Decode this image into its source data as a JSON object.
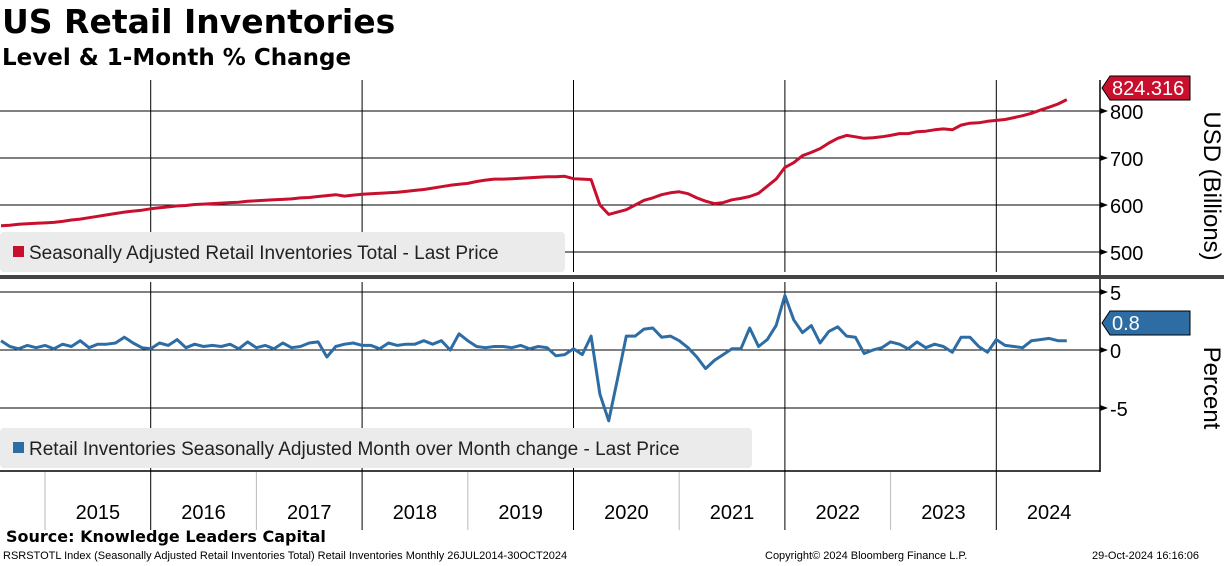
{
  "title": "US Retail Inventories",
  "subtitle": "Level & 1-Month % Change",
  "source": "Source: Knowledge Leaders Capital",
  "footer": {
    "description": "RSRSTOTL Index (Seasonally Adjusted Retail Inventories Total) Retail Inventories  Monthly 26JUL2014-30OCT2024",
    "copyright": "Copyright© 2024 Bloomberg Finance L.P.",
    "timestamp": "29-Oct-2024 16:16:06"
  },
  "chart_data": [
    {
      "type": "line",
      "start": "2014-08",
      "frequency": "monthly",
      "ylabel": "USD (Billions)",
      "yticks": [
        500,
        600,
        700,
        800
      ],
      "ylim": [
        450,
        850
      ],
      "legend": "Seasonally Adjusted Retail Inventories Total - Last Price",
      "last_value_label": "824.316",
      "color": "#c8102e",
      "values": [
        556,
        557,
        559,
        560,
        561,
        562,
        563,
        565,
        568,
        570,
        573,
        576,
        579,
        582,
        585,
        587,
        589,
        592,
        594,
        596,
        598,
        599,
        601,
        602,
        603,
        604,
        605,
        606,
        608,
        609,
        610,
        611,
        612,
        613,
        615,
        616,
        618,
        620,
        622,
        619,
        621,
        623,
        624,
        625,
        626,
        627,
        629,
        631,
        633,
        636,
        639,
        642,
        644,
        646,
        650,
        653,
        655,
        655,
        656,
        657,
        658,
        659,
        660,
        660,
        661,
        656,
        655,
        654,
        600,
        580,
        585,
        590,
        600,
        610,
        615,
        622,
        626,
        628,
        624,
        615,
        608,
        603,
        605,
        611,
        614,
        618,
        625,
        640,
        655,
        680,
        690,
        705,
        712,
        720,
        732,
        742,
        748,
        745,
        742,
        743,
        745,
        748,
        752,
        752,
        756,
        757,
        760,
        762,
        760,
        770,
        774,
        775,
        778,
        780,
        782,
        786,
        790,
        795,
        802,
        808,
        815,
        824.316
      ]
    },
    {
      "type": "line",
      "start": "2014-08",
      "frequency": "monthly",
      "ylabel": "Percent",
      "yticks": [
        5,
        0,
        -5
      ],
      "yticklabels": [
        "5",
        "0",
        "-5"
      ],
      "ylim": [
        -10,
        5
      ],
      "legend": "Retail Inventories Seasonally Adjusted Month over Month change - Last Price",
      "last_value_label": "0.8",
      "color": "#2e6da4",
      "values": [
        0.8,
        0.3,
        0.1,
        0.4,
        0.2,
        0.4,
        0.1,
        0.5,
        0.3,
        0.8,
        0.2,
        0.5,
        0.5,
        0.6,
        1.1,
        0.6,
        0.2,
        0.1,
        0.6,
        0.4,
        0.9,
        0.2,
        0.5,
        0.3,
        0.4,
        0.3,
        0.5,
        0.1,
        0.7,
        0.2,
        0.4,
        0.1,
        0.6,
        0.2,
        0.3,
        0.6,
        0.7,
        -0.6,
        0.3,
        0.5,
        0.6,
        0.4,
        0.4,
        0.1,
        0.6,
        0.4,
        0.5,
        0.5,
        0.8,
        0.5,
        0.8,
        0.0,
        1.4,
        0.8,
        0.3,
        0.2,
        0.3,
        0.3,
        0.2,
        0.4,
        0.1,
        0.3,
        0.2,
        -0.5,
        -0.4,
        0.1,
        -0.4,
        1.2,
        -3.8,
        -6.1,
        -2.5,
        1.2,
        1.2,
        1.8,
        1.9,
        1.1,
        1.2,
        0.8,
        0.2,
        -0.6,
        -1.6,
        -0.9,
        -0.4,
        0.1,
        0.1,
        1.9,
        0.3,
        0.9,
        2.1,
        4.7,
        2.6,
        1.5,
        2.1,
        0.6,
        1.6,
        2.0,
        1.2,
        1.1,
        -0.3,
        0.0,
        0.2,
        0.7,
        0.5,
        0.1,
        0.7,
        0.2,
        0.5,
        0.3,
        -0.2,
        1.1,
        1.1,
        0.3,
        -0.2,
        0.9,
        0.4,
        0.3,
        0.2,
        0.8,
        0.9,
        1.0,
        0.8,
        0.8
      ]
    }
  ],
  "xticks": [
    "2015",
    "2016",
    "2017",
    "2018",
    "2019",
    "2020",
    "2021",
    "2022",
    "2023",
    "2024"
  ]
}
